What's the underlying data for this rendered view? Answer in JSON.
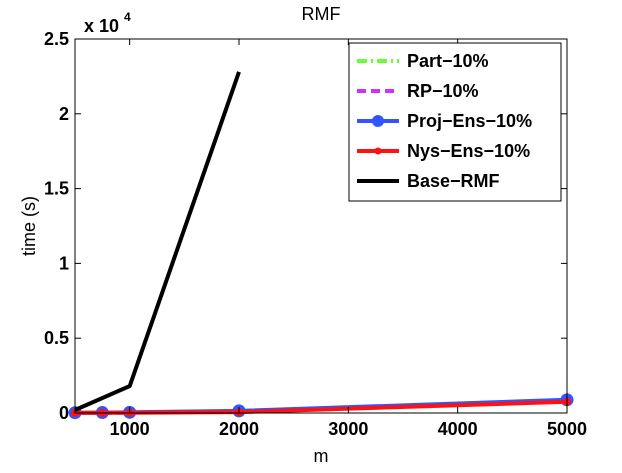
{
  "chart_data": {
    "type": "line",
    "title": "RMF",
    "xlabel": "m",
    "ylabel": "time (s)",
    "xlim": [
      500,
      5000
    ],
    "ylim": [
      0,
      25000
    ],
    "xticks": [
      1000,
      2000,
      3000,
      4000,
      5000
    ],
    "xtick_labels": [
      "1000",
      "2000",
      "3000",
      "4000",
      "5000"
    ],
    "yticks": [
      0,
      5000,
      10000,
      15000,
      20000,
      25000
    ],
    "ytick_labels": [
      "0",
      "0.5",
      "1",
      "1.5",
      "2",
      "2.5"
    ],
    "y_multiplier_base": "x 10",
    "y_multiplier_exp": "4",
    "grid": false,
    "legend_position": "top-right",
    "series": [
      {
        "name": "Part−10%",
        "color": "#66ff33",
        "style": "dashdot",
        "marker": "none",
        "x": [
          500,
          750,
          1000,
          2000,
          5000
        ],
        "y": [
          10,
          15,
          25,
          90,
          850
        ]
      },
      {
        "name": "RP−10%",
        "color": "#cc33ff",
        "style": "dashed",
        "marker": "none",
        "x": [
          500,
          750,
          1000,
          2000,
          5000
        ],
        "y": [
          10,
          15,
          25,
          90,
          820
        ]
      },
      {
        "name": "Proj−Ens−10%",
        "color": "#3355ff",
        "style": "solid",
        "marker": "circle-large",
        "x": [
          500,
          750,
          1000,
          2000,
          5000
        ],
        "y": [
          20,
          30,
          45,
          140,
          880
        ]
      },
      {
        "name": "Nys−Ens−10%",
        "color": "#ff1111",
        "style": "solid",
        "marker": "dot-small",
        "x": [
          500,
          750,
          1000,
          2000,
          5000
        ],
        "y": [
          10,
          15,
          20,
          60,
          750
        ]
      },
      {
        "name": "Base−RMF",
        "color": "#000000",
        "style": "solid",
        "marker": "none",
        "x": [
          500,
          1000,
          2000
        ],
        "y": [
          200,
          1800,
          22800
        ]
      }
    ]
  }
}
